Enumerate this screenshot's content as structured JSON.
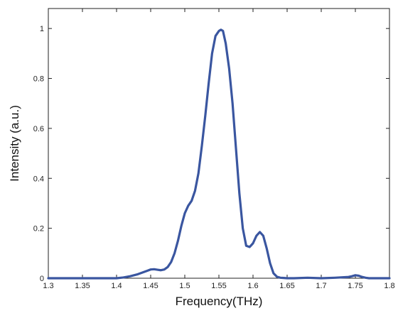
{
  "chart_data": {
    "type": "line",
    "title": "",
    "xlabel": "Frequency(THz)",
    "ylabel": "Intensity (a.u.)",
    "xlim": [
      1.3,
      1.8
    ],
    "ylim": [
      0,
      1.08
    ],
    "grid": false,
    "legend": "none",
    "x_ticks": [
      1.3,
      1.35,
      1.4,
      1.45,
      1.5,
      1.55,
      1.6,
      1.65,
      1.7,
      1.75,
      1.8
    ],
    "x_tick_labels": [
      "1.3",
      "1.35",
      "1.4",
      "1.45",
      "1.5",
      "1.55",
      "1.6",
      "1.65",
      "1.7",
      "1.75",
      "1.8"
    ],
    "y_ticks": [
      0,
      0.2,
      0.4,
      0.6,
      0.8,
      1
    ],
    "y_tick_labels": [
      "0",
      "0.2",
      "0.4",
      "0.6",
      "0.8",
      "1"
    ],
    "series": [
      {
        "color": "#3a56a0",
        "x": [
          1.3,
          1.32,
          1.34,
          1.36,
          1.38,
          1.4,
          1.41,
          1.42,
          1.43,
          1.44,
          1.445,
          1.45,
          1.455,
          1.46,
          1.465,
          1.47,
          1.475,
          1.48,
          1.485,
          1.49,
          1.495,
          1.5,
          1.505,
          1.51,
          1.515,
          1.52,
          1.525,
          1.53,
          1.535,
          1.54,
          1.545,
          1.55,
          1.553,
          1.556,
          1.56,
          1.565,
          1.57,
          1.575,
          1.58,
          1.585,
          1.59,
          1.595,
          1.6,
          1.605,
          1.61,
          1.615,
          1.62,
          1.625,
          1.63,
          1.635,
          1.64,
          1.645,
          1.65,
          1.66,
          1.68,
          1.7,
          1.72,
          1.74,
          1.745,
          1.75,
          1.755,
          1.76,
          1.765,
          1.77,
          1.78,
          1.8
        ],
        "y": [
          0.0,
          0.0,
          0.0,
          0.0,
          0.0,
          0.0,
          0.003,
          0.008,
          0.015,
          0.025,
          0.03,
          0.035,
          0.036,
          0.034,
          0.032,
          0.035,
          0.045,
          0.065,
          0.1,
          0.15,
          0.21,
          0.26,
          0.29,
          0.31,
          0.35,
          0.42,
          0.53,
          0.65,
          0.78,
          0.9,
          0.97,
          0.99,
          0.995,
          0.99,
          0.94,
          0.84,
          0.7,
          0.52,
          0.34,
          0.2,
          0.13,
          0.125,
          0.14,
          0.17,
          0.185,
          0.17,
          0.12,
          0.06,
          0.02,
          0.006,
          0.002,
          0.001,
          0.0,
          0.0,
          0.002,
          0.0,
          0.002,
          0.005,
          0.008,
          0.012,
          0.01,
          0.005,
          0.002,
          0.0,
          0.0,
          0.0
        ]
      }
    ]
  }
}
